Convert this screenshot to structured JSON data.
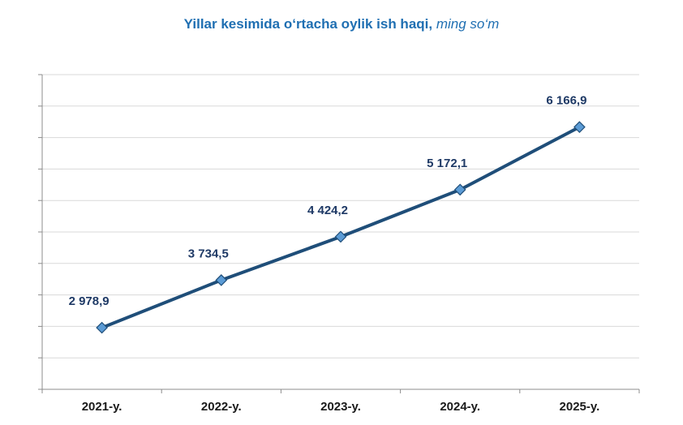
{
  "chart_data": {
    "type": "line",
    "title": "Yillar kesimida o‘rtacha oylik ish haqi,",
    "title_unit": "ming so‘m",
    "categories": [
      "2021-y.",
      "2022-y.",
      "2023-y.",
      "2024-y.",
      "2025-y."
    ],
    "values": [
      2978.9,
      3734.5,
      4424.2,
      5172.1,
      6166.9
    ],
    "value_labels": [
      "2 978,9",
      "3 734,5",
      "4 424,2",
      "5 172,1",
      "6 166,9"
    ],
    "xlabel": "",
    "ylabel": "",
    "ylim": [
      2000,
      7000
    ],
    "y_tick_step": 500,
    "y_tick_labels_shown": false,
    "grid": true,
    "legend": "none",
    "colors": {
      "line": "#1f4e79",
      "marker_fill": "#5b9bd5",
      "marker_stroke": "#1f4e79",
      "grid": "#d9d9d9",
      "title": "#1f6fb2",
      "data_label": "#1f3a66"
    }
  }
}
